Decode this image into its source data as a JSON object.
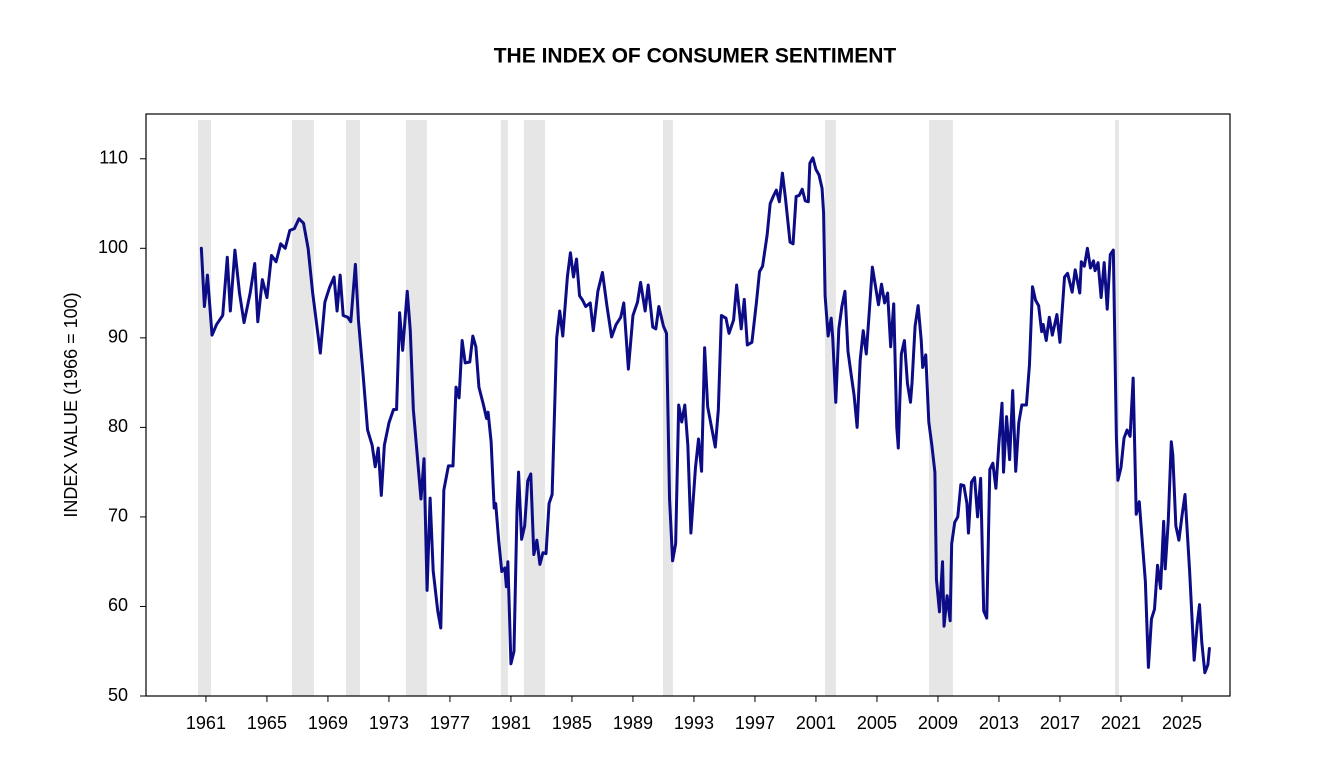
{
  "chart_data": {
    "type": "line",
    "title": "THE INDEX OF CONSUMER SENTIMENT",
    "y_label": "INDEX VALUE (1966 = 100)",
    "xlim": [
      1957.07,
      2028.15
    ],
    "xticks": [
      1961,
      1965,
      1969,
      1973,
      1977,
      1981,
      1985,
      1989,
      1993,
      1997,
      2001,
      2005,
      2009,
      2013,
      2017,
      2021,
      2025
    ],
    "ylim": [
      50,
      115
    ],
    "yticks": [
      50,
      60,
      70,
      80,
      90,
      100,
      110
    ],
    "color": "#0c0c86",
    "recession_color": "#e6e6e6",
    "recessions": [
      [
        1960.48,
        1961.33
      ],
      [
        1966.64,
        1968.08
      ],
      [
        1970.18,
        1971.1
      ],
      [
        1974.11,
        1975.49
      ],
      [
        1980.34,
        1980.8
      ],
      [
        1981.85,
        1983.23
      ],
      [
        1990.97,
        1991.62
      ],
      [
        2001.59,
        2002.31
      ],
      [
        2008.41,
        2009.98
      ],
      [
        2020.61,
        2020.87
      ]
    ],
    "x": [
      1960.7,
      1960.9,
      1961.1,
      1961.4,
      1961.7,
      1962.1,
      1962.4,
      1962.6,
      1962.9,
      1963.2,
      1963.5,
      1963.9,
      1964.2,
      1964.4,
      1964.7,
      1965.0,
      1965.3,
      1965.6,
      1965.9,
      1966.2,
      1966.5,
      1966.8,
      1967.1,
      1967.4,
      1967.7,
      1968.0,
      1968.3,
      1968.5,
      1968.8,
      1969.1,
      1969.4,
      1969.6,
      1969.8,
      1970.0,
      1970.3,
      1970.5,
      1970.8,
      1971.0,
      1971.3,
      1971.6,
      1971.9,
      1972.1,
      1972.3,
      1972.5,
      1972.7,
      1973.0,
      1973.3,
      1973.5,
      1973.7,
      1973.9,
      1974.2,
      1974.4,
      1974.6,
      1974.9,
      1975.1,
      1975.3,
      1975.5,
      1975.7,
      1975.9,
      1976.2,
      1976.4,
      1976.6,
      1976.9,
      1977.2,
      1977.4,
      1977.6,
      1977.8,
      1978.0,
      1978.3,
      1978.5,
      1978.7,
      1978.9,
      1979.2,
      1979.4,
      1979.5,
      1979.7,
      1979.9,
      1980.0,
      1980.2,
      1980.4,
      1980.6,
      1980.7,
      1980.8,
      1981.0,
      1981.2,
      1981.4,
      1981.5,
      1981.7,
      1981.9,
      1982.1,
      1982.3,
      1982.5,
      1982.7,
      1982.9,
      1983.1,
      1983.3,
      1983.5,
      1983.7,
      1984.0,
      1984.2,
      1984.4,
      1984.7,
      1984.9,
      1985.1,
      1985.3,
      1985.5,
      1985.7,
      1985.9,
      1986.2,
      1986.4,
      1986.7,
      1987.0,
      1987.3,
      1987.6,
      1987.9,
      1988.2,
      1988.4,
      1988.7,
      1989.0,
      1989.3,
      1989.5,
      1989.8,
      1990.0,
      1990.3,
      1990.5,
      1990.7,
      1991.0,
      1991.2,
      1991.4,
      1991.6,
      1991.8,
      1992.0,
      1992.2,
      1992.4,
      1992.6,
      1992.8,
      1993.1,
      1993.3,
      1993.5,
      1993.7,
      1993.9,
      1994.2,
      1994.4,
      1994.6,
      1994.8,
      1995.1,
      1995.3,
      1995.6,
      1995.8,
      1996.1,
      1996.3,
      1996.5,
      1996.8,
      1997.1,
      1997.3,
      1997.5,
      1997.8,
      1998.0,
      1998.2,
      1998.4,
      1998.6,
      1998.8,
      1999.0,
      1999.3,
      1999.5,
      1999.7,
      1999.9,
      2000.1,
      2000.3,
      2000.5,
      2000.6,
      2000.8,
      2001.0,
      2001.2,
      2001.4,
      2001.5,
      2001.6,
      2001.8,
      2002.0,
      2002.1,
      2002.3,
      2002.5,
      2002.7,
      2002.9,
      2003.1,
      2003.3,
      2003.5,
      2003.7,
      2003.9,
      2004.1,
      2004.3,
      2004.5,
      2004.7,
      2004.9,
      2005.1,
      2005.3,
      2005.5,
      2005.7,
      2005.9,
      2006.1,
      2006.3,
      2006.4,
      2006.6,
      2006.8,
      2007.0,
      2007.2,
      2007.3,
      2007.5,
      2007.7,
      2007.9,
      2008.0,
      2008.2,
      2008.4,
      2008.6,
      2008.8,
      2008.9,
      2009.1,
      2009.3,
      2009.4,
      2009.6,
      2009.8,
      2009.9,
      2010.1,
      2010.3,
      2010.5,
      2010.7,
      2010.9,
      2011.0,
      2011.2,
      2011.4,
      2011.6,
      2011.8,
      2012.0,
      2012.2,
      2012.4,
      2012.6,
      2012.8,
      2013.0,
      2013.2,
      2013.3,
      2013.5,
      2013.7,
      2013.9,
      2014.1,
      2014.3,
      2014.5,
      2014.8,
      2015.0,
      2015.2,
      2015.4,
      2015.6,
      2015.8,
      2015.9,
      2016.1,
      2016.3,
      2016.5,
      2016.8,
      2017.0,
      2017.3,
      2017.5,
      2017.8,
      2018.0,
      2018.3,
      2018.4,
      2018.6,
      2018.8,
      2019.0,
      2019.2,
      2019.3,
      2019.5,
      2019.7,
      2019.9,
      2020.1,
      2020.3,
      2020.5,
      2020.7,
      2020.8,
      2021.0,
      2021.2,
      2021.4,
      2021.6,
      2021.8,
      2022.0,
      2022.2,
      2022.4,
      2022.6,
      2022.8,
      2023.0,
      2023.2,
      2023.4,
      2023.6,
      2023.8,
      2023.9,
      2024.1,
      2024.3,
      2024.4,
      2024.6,
      2024.8,
      2025.0,
      2025.2,
      2025.5,
      2025.8,
      2026.0,
      2026.15,
      2026.3,
      2026.5,
      2026.7,
      2026.8
    ],
    "values": [
      100,
      93.5,
      97,
      90.3,
      91.5,
      92.5,
      99,
      93,
      99.8,
      95,
      91.7,
      95,
      98.3,
      91.8,
      96.5,
      94.5,
      99.2,
      98.5,
      100.5,
      100,
      102,
      102.2,
      103.3,
      102.8,
      100,
      95,
      91,
      88.3,
      94,
      95.6,
      96.8,
      93,
      97,
      92.5,
      92.3,
      91.8,
      98.2,
      92,
      86,
      79.7,
      78,
      75.6,
      77.7,
      72.4,
      78,
      80.5,
      82,
      82,
      92.8,
      88.6,
      95.2,
      90.8,
      82,
      76,
      72,
      76.5,
      61.8,
      72.1,
      64,
      59.5,
      57.6,
      73,
      75.7,
      75.7,
      84.5,
      83.3,
      89.7,
      87.2,
      87.3,
      90.2,
      89,
      84.5,
      82.5,
      81,
      81.7,
      78.4,
      71,
      71.5,
      67.3,
      63.9,
      64.3,
      62.2,
      65,
      53.6,
      55,
      71,
      75,
      67.5,
      69,
      74,
      74.8,
      65.8,
      67.4,
      64.7,
      66,
      65.9,
      71.5,
      72.5,
      90,
      93,
      90.2,
      96.8,
      99.5,
      96.8,
      98.8,
      94.7,
      94.2,
      93.5,
      93.9,
      90.8,
      95.2,
      97.3,
      93.5,
      90.1,
      91.5,
      92.3,
      93.9,
      86.5,
      92.5,
      94,
      96.2,
      93,
      95.9,
      91.2,
      91,
      93.5,
      91.3,
      90.5,
      72,
      65.1,
      67,
      82.5,
      80.6,
      82.5,
      78,
      68.2,
      75.5,
      78.7,
      75.1,
      88.9,
      82.3,
      79.6,
      77.8,
      82,
      92.5,
      92.2,
      90.5,
      92,
      95.9,
      91,
      94.3,
      89.2,
      89.5,
      94,
      97.4,
      98,
      101.5,
      105,
      105.8,
      106.5,
      105.2,
      108.4,
      105.6,
      100.7,
      100.5,
      105.8,
      105.9,
      106.6,
      105.3,
      105.2,
      109.5,
      110.1,
      108.8,
      108.2,
      106.7,
      104,
      94.7,
      90.2,
      92.2,
      90,
      82.8,
      91,
      93.5,
      95.2,
      88.5,
      86,
      83.6,
      80,
      87.5,
      90.8,
      88.2,
      93,
      97.9,
      95.8,
      93.7,
      96,
      93.9,
      95,
      89,
      93.8,
      80,
      77.7,
      88.2,
      89.7,
      84.9,
      82.8,
      85,
      91.3,
      93.6,
      89.8,
      86.7,
      88.1,
      80.6,
      78,
      75,
      63,
      59.4,
      65,
      57.8,
      61.2,
      58.4,
      67,
      69.4,
      70,
      73.6,
      73.5,
      71.5,
      68.2,
      73.9,
      74.4,
      70,
      74.3,
      59.5,
      58.7,
      75.3,
      76,
      73.2,
      78.3,
      82.7,
      75,
      81.2,
      76.4,
      84.1,
      75.1,
      80.5,
      82.5,
      82.5,
      87,
      95.7,
      94.2,
      93.6,
      90.7,
      91.5,
      89.7,
      92.3,
      90.3,
      92.6,
      89.5,
      96.8,
      97.2,
      95.1,
      97.6,
      95,
      98.5,
      98,
      100,
      97.8,
      98.6,
      97.5,
      98.4,
      94.5,
      98.4,
      93.2,
      99.3,
      99.8,
      78.9,
      74.1,
      75.5,
      78.8,
      79.7,
      79,
      85.5,
      70.3,
      71.7,
      67.2,
      62.8,
      53.2,
      58.6,
      59.7,
      64.6,
      62,
      69.5,
      64.2,
      69.5,
      78.4,
      76.9,
      69,
      67.4,
      70.1,
      72.5,
      64,
      54,
      58,
      60.2,
      56,
      52.6,
      53.5,
      55.3
    ]
  }
}
